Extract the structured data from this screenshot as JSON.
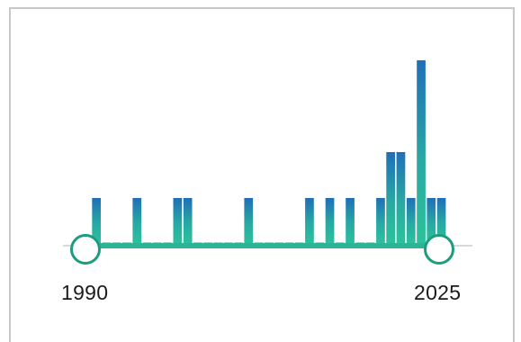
{
  "year_filter": {
    "range_start_label": "1990",
    "range_end_label": "2025",
    "min_year": 1990,
    "max_year": 2025,
    "selected_start": 1990,
    "selected_end": 2025,
    "colors": {
      "bar_low": "#2bc29c",
      "bar_high": "#1f6fb8",
      "track": "#2bb596",
      "handle_border": "#1e9c80",
      "empty_tick": "#8fd9c6"
    }
  },
  "chart_data": {
    "type": "bar",
    "x": [
      1990,
      1991,
      1992,
      1993,
      1994,
      1995,
      1996,
      1997,
      1998,
      1999,
      2000,
      2001,
      2002,
      2003,
      2004,
      2005,
      2006,
      2007,
      2008,
      2009,
      2010,
      2011,
      2012,
      2013,
      2014,
      2015,
      2016,
      2017,
      2018,
      2019,
      2020,
      2021,
      2022,
      2023,
      2024,
      2025
    ],
    "values": [
      0,
      1,
      0,
      0,
      0,
      1,
      0,
      0,
      0,
      1,
      1,
      0,
      0,
      0,
      0,
      0,
      1,
      0,
      0,
      0,
      0,
      0,
      1,
      0,
      1,
      0,
      1,
      0,
      0,
      1,
      2,
      2,
      1,
      4,
      1,
      1
    ],
    "title": "",
    "xlabel": "",
    "ylabel": ""
  }
}
